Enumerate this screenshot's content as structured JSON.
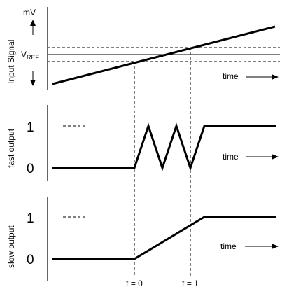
{
  "panels": {
    "input": {
      "unit": "mV",
      "side_label": "Input Signal",
      "vref_main": "V",
      "vref_sub": "REF",
      "time_label": "time"
    },
    "fast": {
      "side_label": "fast output",
      "level_high": "1",
      "level_low": "0",
      "time_label": "time"
    },
    "slow": {
      "side_label": "slow output",
      "level_high": "1",
      "level_low": "0",
      "time_label": "time"
    }
  },
  "markers": {
    "t0": "t = 0",
    "t1": "t = 1"
  }
}
